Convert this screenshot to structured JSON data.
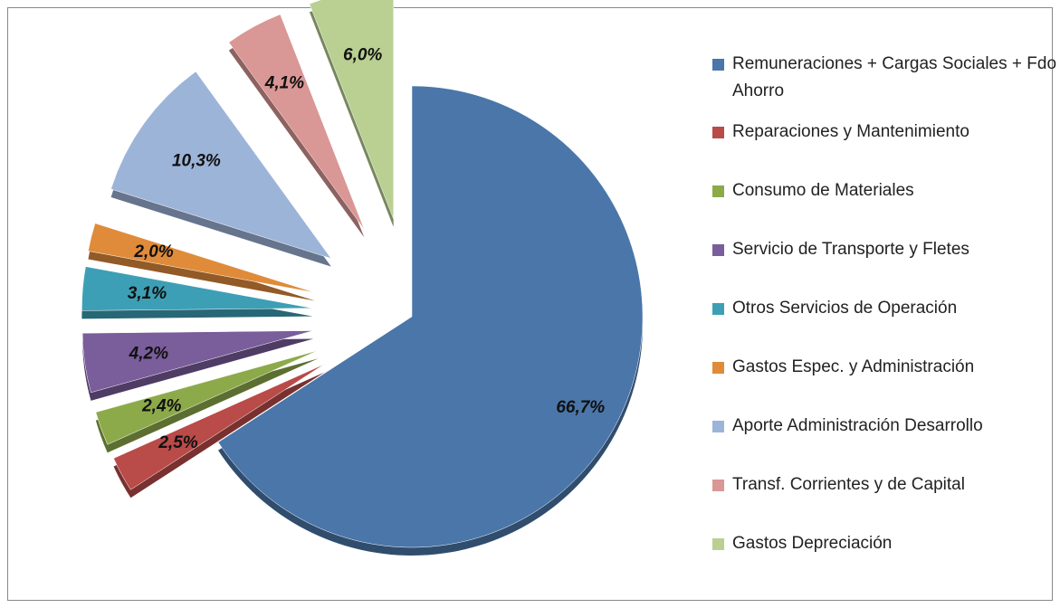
{
  "chart_data": {
    "type": "pie",
    "categories": [
      "Remuneraciones + Cargas Sociales + Fdo Ahorro",
      "Reparaciones y Mantenimiento",
      "Consumo de Materiales",
      "Servicio de Transporte y Fletes",
      "Otros Servicios de Operación",
      "Gastos Espec. y Administración",
      "Aporte Administración Desarrollo",
      "Transf. Corrientes y de Capital",
      "Gastos Depreciación"
    ],
    "values": [
      66.7,
      2.5,
      2.4,
      4.2,
      3.1,
      2.0,
      10.3,
      4.1,
      6.0
    ],
    "value_labels": [
      "66,7%",
      "2,5%",
      "2,4%",
      "4,2%",
      "3,1%",
      "2,0%",
      "10,3%",
      "4,1%",
      "6,0%"
    ],
    "colors": [
      "#4a76a9",
      "#b94b48",
      "#8daa4b",
      "#7a5d9b",
      "#3d9fb5",
      "#e08b3a",
      "#9db4d9",
      "#d99795",
      "#b9d092"
    ],
    "legend": "right"
  }
}
